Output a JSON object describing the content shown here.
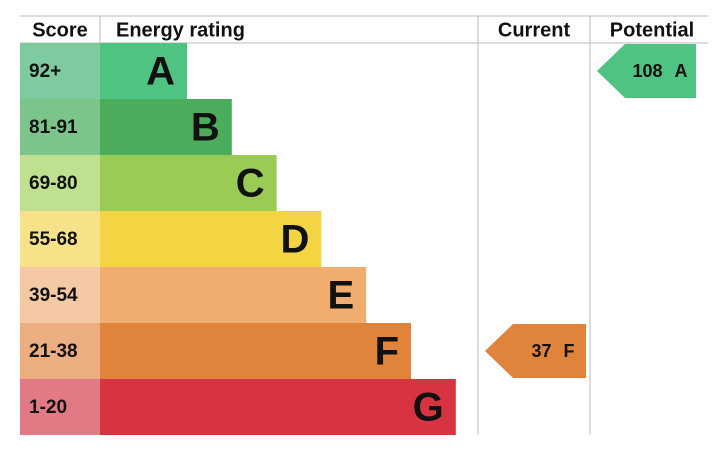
{
  "header": {
    "score": "Score",
    "rating": "Energy rating",
    "current": "Current",
    "potential": "Potential"
  },
  "bands": [
    {
      "score": "92+",
      "letter": "A",
      "color": "#4fc381",
      "score_color": "#7ecba0"
    },
    {
      "score": "81-91",
      "letter": "B",
      "color": "#4bad5c",
      "score_color": "#7cc58a"
    },
    {
      "score": "69-80",
      "letter": "C",
      "color": "#99cb55",
      "score_color": "#bee08f"
    },
    {
      "score": "55-68",
      "letter": "D",
      "color": "#f3d442",
      "score_color": "#f7e28a"
    },
    {
      "score": "39-54",
      "letter": "E",
      "color": "#f0ad6f",
      "score_color": "#f5c9a3"
    },
    {
      "score": "21-38",
      "letter": "F",
      "color": "#e1843b",
      "score_color": "#ecae80"
    },
    {
      "score": "1-20",
      "letter": "G",
      "color": "#d83340",
      "score_color": "#e27a86"
    }
  ],
  "current": {
    "value": 37,
    "letter": "F"
  },
  "potential": {
    "value": 108,
    "letter": "A"
  }
}
